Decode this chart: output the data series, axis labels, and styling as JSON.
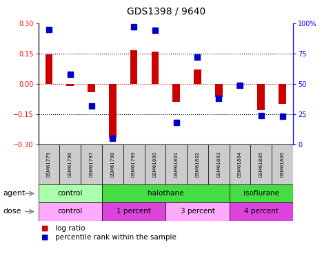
{
  "title": "GDS1398 / 9640",
  "samples": [
    "GSM61779",
    "GSM61796",
    "GSM61797",
    "GSM61798",
    "GSM61799",
    "GSM61800",
    "GSM61801",
    "GSM61802",
    "GSM61803",
    "GSM61804",
    "GSM61805",
    "GSM61806"
  ],
  "log_ratio": [
    0.145,
    -0.01,
    -0.04,
    -0.265,
    0.165,
    0.16,
    -0.09,
    0.07,
    -0.065,
    -0.025,
    -0.13,
    -0.1
  ],
  "percentile_rank": [
    95,
    58,
    32,
    5,
    97,
    94,
    18,
    72,
    38,
    49,
    24,
    23
  ],
  "ylim_left": [
    -0.3,
    0.3
  ],
  "ylim_right": [
    0,
    100
  ],
  "yticks_left": [
    -0.3,
    -0.15,
    0,
    0.15,
    0.3
  ],
  "yticks_right": [
    0,
    25,
    50,
    75,
    100
  ],
  "hlines_dotted": [
    0.15,
    -0.15
  ],
  "bar_color": "#cc0000",
  "dot_color": "#0000cc",
  "zero_line_color": "#cc0000",
  "agent_groups": [
    {
      "label": "control",
      "start": 0,
      "end": 3,
      "color": "#aaffaa"
    },
    {
      "label": "halothane",
      "start": 3,
      "end": 9,
      "color": "#44dd44"
    },
    {
      "label": "isoflurane",
      "start": 9,
      "end": 12,
      "color": "#44dd44"
    }
  ],
  "dose_groups": [
    {
      "label": "control",
      "start": 0,
      "end": 3,
      "color": "#ffaaff"
    },
    {
      "label": "1 percent",
      "start": 3,
      "end": 6,
      "color": "#dd44dd"
    },
    {
      "label": "3 percent",
      "start": 6,
      "end": 9,
      "color": "#ffaaff"
    },
    {
      "label": "4 percent",
      "start": 9,
      "end": 12,
      "color": "#dd44dd"
    }
  ],
  "legend_bar_label": "log ratio",
  "legend_dot_label": "percentile rank within the sample",
  "bar_width": 0.35,
  "dot_size": 30,
  "bg_color": "#ffffff"
}
